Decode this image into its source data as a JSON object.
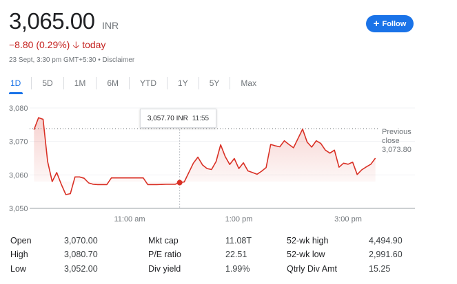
{
  "quote": {
    "price": "3,065.00",
    "currency": "INR",
    "change": "−8.80 (0.29%)",
    "change_arrow": "arrow-down-icon",
    "change_period": "today",
    "timestamp": "23 Sept, 3:30 pm GMT+5:30",
    "separator": "•",
    "disclaimer": "Disclaimer",
    "negative_color": "#c5221f"
  },
  "follow": {
    "label": "Follow",
    "icon": "plus-icon",
    "color": "#1a73e8"
  },
  "tabs": [
    {
      "label": "1D",
      "active": true
    },
    {
      "label": "5D"
    },
    {
      "label": "1M"
    },
    {
      "label": "6M"
    },
    {
      "label": "YTD"
    },
    {
      "label": "1Y"
    },
    {
      "label": "5Y"
    },
    {
      "label": "Max"
    }
  ],
  "tooltip": {
    "value": "3,057.70 INR",
    "time": "11:55"
  },
  "previous_close": {
    "label_line1": "Previous",
    "label_line2": "close",
    "value": "3,073.80"
  },
  "chart_data": {
    "type": "area",
    "ylim": [
      3050,
      3080
    ],
    "y_ticks": [
      "3,080",
      "3,070",
      "3,060",
      "3,050"
    ],
    "y_tick_values": [
      3080,
      3070,
      3060,
      3050
    ],
    "x_ticks": [
      {
        "label": "11:00 am",
        "time": "11:00"
      },
      {
        "label": "1:00 pm",
        "time": "13:00"
      },
      {
        "label": "3:00 pm",
        "time": "15:00"
      }
    ],
    "x_range": [
      "9:15",
      "15:30"
    ],
    "grid": true,
    "line_color": "#d93025",
    "previous_close": 3073.8,
    "highlight": {
      "time": "11:55",
      "value": 3057.7
    },
    "x": [
      "9:15",
      "9:20",
      "9:25",
      "9:30",
      "9:35",
      "9:40",
      "9:45",
      "9:50",
      "9:55",
      "10:00",
      "10:05",
      "10:10",
      "10:15",
      "10:20",
      "10:25",
      "10:30",
      "10:35",
      "10:40",
      "10:45",
      "10:50",
      "11:00",
      "11:10",
      "11:15",
      "11:20",
      "11:30",
      "11:40",
      "11:50",
      "11:55",
      "12:00",
      "12:10",
      "12:15",
      "12:20",
      "12:25",
      "12:30",
      "12:35",
      "12:40",
      "12:45",
      "12:50",
      "12:55",
      "13:00",
      "13:05",
      "13:10",
      "13:15",
      "13:20",
      "13:25",
      "13:30",
      "13:35",
      "13:40",
      "13:45",
      "13:50",
      "13:55",
      "14:00",
      "14:05",
      "14:10",
      "14:15",
      "14:20",
      "14:25",
      "14:30",
      "14:35",
      "14:40",
      "14:45",
      "14:50",
      "14:55",
      "15:00",
      "15:05",
      "15:10",
      "15:15",
      "15:20",
      "15:25",
      "15:30"
    ],
    "values": [
      3073.5,
      3077.1,
      3076.6,
      3064.0,
      3058.0,
      3060.7,
      3057.2,
      3054.1,
      3054.4,
      3059.4,
      3059.4,
      3059.0,
      3057.6,
      3057.2,
      3057.1,
      3057.1,
      3057.1,
      3059.1,
      3059.1,
      3059.1,
      3059.1,
      3059.1,
      3059.1,
      3057.1,
      3057.1,
      3057.2,
      3057.2,
      3057.7,
      3057.9,
      3063.5,
      3065.3,
      3063.0,
      3061.9,
      3061.6,
      3064.0,
      3069.0,
      3065.5,
      3063.1,
      3064.9,
      3061.9,
      3063.6,
      3061.2,
      3060.7,
      3060.2,
      3061.1,
      3062.2,
      3069.1,
      3068.7,
      3068.4,
      3070.2,
      3069.1,
      3068.1,
      3070.9,
      3073.7,
      3069.8,
      3068.3,
      3070.2,
      3069.4,
      3067.4,
      3066.5,
      3067.4,
      3062.3,
      3063.5,
      3063.2,
      3063.8,
      3060.1,
      3061.5,
      3062.4,
      3063.2,
      3065.0
    ]
  },
  "stats": [
    [
      {
        "label": "Open",
        "value": "3,070.00"
      },
      {
        "label": "Mkt cap",
        "value": "11.08T"
      },
      {
        "label": "52-wk high",
        "value": "4,494.90"
      }
    ],
    [
      {
        "label": "High",
        "value": "3,080.70"
      },
      {
        "label": "P/E ratio",
        "value": "22.51"
      },
      {
        "label": "52-wk low",
        "value": "2,991.60"
      }
    ],
    [
      {
        "label": "Low",
        "value": "3,052.00"
      },
      {
        "label": "Div yield",
        "value": "1.99%"
      },
      {
        "label": "Qtrly Div Amt",
        "value": "15.25"
      }
    ]
  ]
}
